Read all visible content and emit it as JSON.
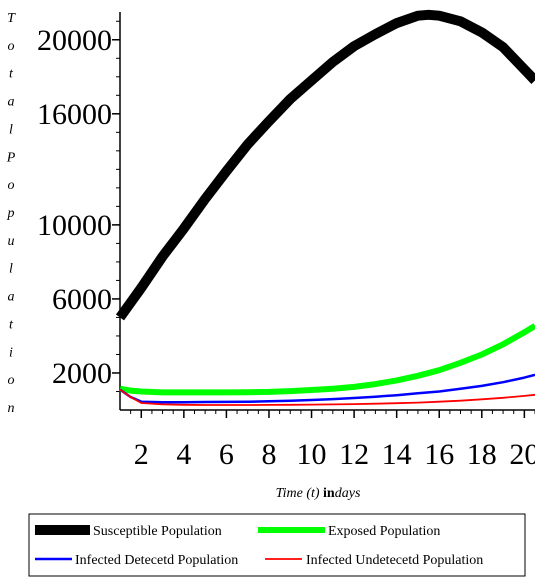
{
  "chart_data": {
    "type": "line",
    "xlabel_parts": {
      "pre": "Time (",
      "var": "t",
      "mid": ") ",
      "in": "in",
      "unit": "days"
    },
    "ylabel": "TotalPopulation",
    "xlim": [
      1,
      20.5
    ],
    "ylim": [
      0,
      21500
    ],
    "x_ticks": [
      2,
      4,
      6,
      8,
      10,
      12,
      14,
      16,
      18,
      20
    ],
    "y_ticks": [
      2000,
      6000,
      10000,
      16000,
      20000
    ],
    "series": [
      {
        "name": "Susceptible Population",
        "color": "#000000",
        "x": [
          1,
          2,
          3,
          4,
          5,
          6,
          7,
          8,
          9,
          10,
          11,
          12,
          13,
          14,
          15,
          15.5,
          16,
          17,
          18,
          19,
          20,
          20.5
        ],
        "y": [
          5000,
          6600,
          8300,
          9800,
          11400,
          12900,
          14350,
          15600,
          16800,
          17800,
          18800,
          19650,
          20300,
          20900,
          21300,
          21350,
          21300,
          21000,
          20400,
          19600,
          18400,
          17800
        ]
      },
      {
        "name": "Exposed Population",
        "color": "#00ff00",
        "x": [
          1,
          1.5,
          2,
          3,
          4,
          5,
          6,
          7,
          8,
          9,
          10,
          11,
          12,
          13,
          14,
          15,
          16,
          17,
          18,
          19,
          20,
          20.5
        ],
        "y": [
          1150,
          1050,
          1000,
          950,
          950,
          950,
          950,
          960,
          980,
          1020,
          1080,
          1150,
          1250,
          1400,
          1600,
          1850,
          2150,
          2550,
          3000,
          3550,
          4200,
          4550
        ]
      },
      {
        "name": "Infected Detecetd Population",
        "color": "#0000ff",
        "x": [
          1,
          1.5,
          2,
          3,
          4,
          5,
          6,
          7,
          8,
          9,
          10,
          11,
          12,
          13,
          14,
          15,
          16,
          17,
          18,
          19,
          20,
          20.5
        ],
        "y": [
          1100,
          700,
          450,
          420,
          420,
          430,
          440,
          450,
          470,
          500,
          540,
          590,
          650,
          720,
          800,
          900,
          1000,
          1150,
          1300,
          1500,
          1750,
          1900
        ]
      },
      {
        "name": "Infected Undetecetd Population",
        "color": "#ff0000",
        "x": [
          1,
          1.5,
          2,
          3,
          4,
          5,
          6,
          7,
          8,
          9,
          10,
          11,
          12,
          13,
          14,
          15,
          16,
          17,
          18,
          19,
          20,
          20.5
        ],
        "y": [
          1100,
          700,
          380,
          300,
          280,
          270,
          270,
          270,
          275,
          280,
          290,
          300,
          320,
          340,
          370,
          400,
          450,
          500,
          580,
          660,
          760,
          820
        ]
      }
    ],
    "legend_placement": "bottom",
    "grid": false
  }
}
